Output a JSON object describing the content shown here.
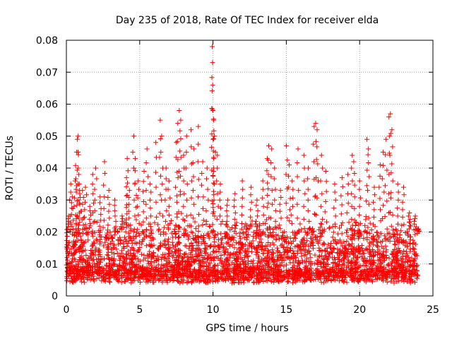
{
  "chart_data": {
    "type": "scatter",
    "title": "Day 235 of 2018, Rate Of TEC Index for receiver elda",
    "xlabel": "GPS time / hours",
    "ylabel": "ROTI / TECUs",
    "xlim": [
      0,
      25
    ],
    "ylim": [
      0,
      0.08
    ],
    "x_ticks": [
      0,
      5,
      10,
      15,
      20,
      25
    ],
    "x_tick_labels": [
      "0",
      "5",
      "10",
      "15",
      "20",
      "25"
    ],
    "y_ticks": [
      0,
      0.01,
      0.02,
      0.03,
      0.04,
      0.05,
      0.06,
      0.07,
      0.08
    ],
    "y_tick_labels": [
      "0",
      "0.01",
      "0.02",
      "0.03",
      "0.04",
      "0.05",
      "0.06",
      "0.07",
      "0.08"
    ],
    "grid": true,
    "legend": "none",
    "marker": "+",
    "colors": {
      "points": "#ff0000",
      "grid": "#a0a0a0",
      "axes": "#000000"
    },
    "x_range_of_data": [
      0,
      24
    ],
    "bulk_band": [
      0.004,
      0.02
    ],
    "series": [
      {
        "points": [
          [
            0.05,
            0.012
          ],
          [
            0.15,
            0.025
          ],
          [
            0.3,
            0.035
          ],
          [
            0.4,
            0.031
          ],
          [
            0.6,
            0.036
          ],
          [
            0.7,
            0.045
          ],
          [
            0.75,
            0.049
          ],
          [
            0.8,
            0.05
          ],
          [
            0.85,
            0.038
          ],
          [
            0.9,
            0.033
          ],
          [
            1.1,
            0.033
          ],
          [
            1.3,
            0.034
          ],
          [
            1.6,
            0.028
          ],
          [
            1.8,
            0.038
          ],
          [
            2.0,
            0.04
          ],
          [
            2.3,
            0.031
          ],
          [
            2.6,
            0.042
          ],
          [
            2.9,
            0.033
          ],
          [
            3.3,
            0.03
          ],
          [
            3.8,
            0.025
          ],
          [
            4.1,
            0.037
          ],
          [
            4.15,
            0.043
          ],
          [
            4.3,
            0.033
          ],
          [
            4.6,
            0.05
          ],
          [
            4.7,
            0.043
          ],
          [
            4.9,
            0.036
          ],
          [
            5.3,
            0.039
          ],
          [
            5.5,
            0.046
          ],
          [
            5.7,
            0.035
          ],
          [
            6.1,
            0.048
          ],
          [
            6.4,
            0.055
          ],
          [
            6.5,
            0.05
          ],
          [
            6.8,
            0.04
          ],
          [
            7.0,
            0.036
          ],
          [
            7.5,
            0.048
          ],
          [
            7.6,
            0.054
          ],
          [
            7.7,
            0.058
          ],
          [
            7.8,
            0.055
          ],
          [
            8.0,
            0.044
          ],
          [
            8.2,
            0.05
          ],
          [
            8.5,
            0.052
          ],
          [
            8.7,
            0.046
          ],
          [
            9.0,
            0.053
          ],
          [
            9.3,
            0.042
          ],
          [
            9.6,
            0.04
          ],
          [
            9.95,
            0.078
          ],
          [
            9.97,
            0.073
          ],
          [
            9.98,
            0.066
          ],
          [
            10.0,
            0.058
          ],
          [
            10.05,
            0.055
          ],
          [
            10.1,
            0.05
          ],
          [
            10.3,
            0.044
          ],
          [
            10.5,
            0.035
          ],
          [
            11.0,
            0.03
          ],
          [
            11.5,
            0.032
          ],
          [
            12.0,
            0.036
          ],
          [
            12.6,
            0.034
          ],
          [
            13.0,
            0.03
          ],
          [
            13.4,
            0.036
          ],
          [
            13.7,
            0.043
          ],
          [
            13.8,
            0.047
          ],
          [
            14.0,
            0.046
          ],
          [
            14.2,
            0.04
          ],
          [
            14.6,
            0.033
          ],
          [
            15.0,
            0.047
          ],
          [
            15.2,
            0.041
          ],
          [
            15.4,
            0.036
          ],
          [
            15.8,
            0.046
          ],
          [
            16.2,
            0.044
          ],
          [
            16.5,
            0.04
          ],
          [
            16.9,
            0.053
          ],
          [
            17.0,
            0.054
          ],
          [
            17.1,
            0.052
          ],
          [
            17.4,
            0.044
          ],
          [
            17.7,
            0.039
          ],
          [
            18.3,
            0.035
          ],
          [
            18.8,
            0.037
          ],
          [
            19.2,
            0.038
          ],
          [
            19.5,
            0.044
          ],
          [
            19.6,
            0.042
          ],
          [
            20.0,
            0.036
          ],
          [
            20.5,
            0.049
          ],
          [
            20.6,
            0.046
          ],
          [
            21.0,
            0.034
          ],
          [
            21.4,
            0.041
          ],
          [
            21.6,
            0.045
          ],
          [
            21.8,
            0.049
          ],
          [
            22.0,
            0.056
          ],
          [
            22.1,
            0.057
          ],
          [
            22.2,
            0.052
          ],
          [
            22.6,
            0.035
          ],
          [
            23.0,
            0.034
          ],
          [
            23.4,
            0.026
          ],
          [
            23.8,
            0.025
          ],
          [
            24.0,
            0.021
          ]
        ]
      }
    ]
  }
}
